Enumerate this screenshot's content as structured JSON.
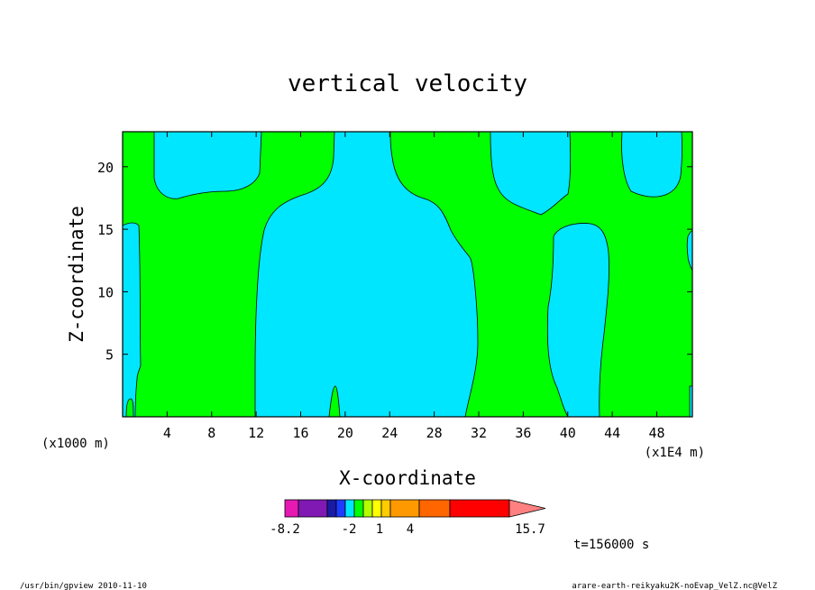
{
  "chart_data": {
    "type": "heatmap",
    "title": "vertical velocity",
    "xlabel": "X-coordinate",
    "ylabel": "Z-coordinate",
    "x_unit_left": "(x1000 m)",
    "x_unit_right": "(x1E4 m)",
    "xlim": [
      0,
      51.2
    ],
    "ylim": [
      0,
      22.8
    ],
    "xticks": [
      "4",
      "8",
      "12",
      "16",
      "20",
      "24",
      "28",
      "32",
      "36",
      "40",
      "44",
      "48"
    ],
    "yticks": [
      "5",
      "10",
      "15",
      "20"
    ],
    "colorbar": {
      "labels": [
        "-8.2",
        "-2",
        "1",
        "4",
        "15.7"
      ],
      "colors": [
        "#e619b3",
        "#8019b3",
        "#1a1aa6",
        "#1e3cff",
        "#00e6ff",
        "#00ff00",
        "#b3ff00",
        "#ffff00",
        "#ffcc00",
        "#ff9900",
        "#ff6600",
        "#ff0000",
        "#ff8080"
      ]
    },
    "time_label": "t=156000 s",
    "regions": {
      "positive_color": "#00ff00",
      "negative_color": "#00e6ff"
    }
  },
  "footer": {
    "left": "/usr/bin/gpview  2010-11-10",
    "right": "arare-earth-reikyaku2K-noEvap_VelZ.nc@VelZ"
  }
}
